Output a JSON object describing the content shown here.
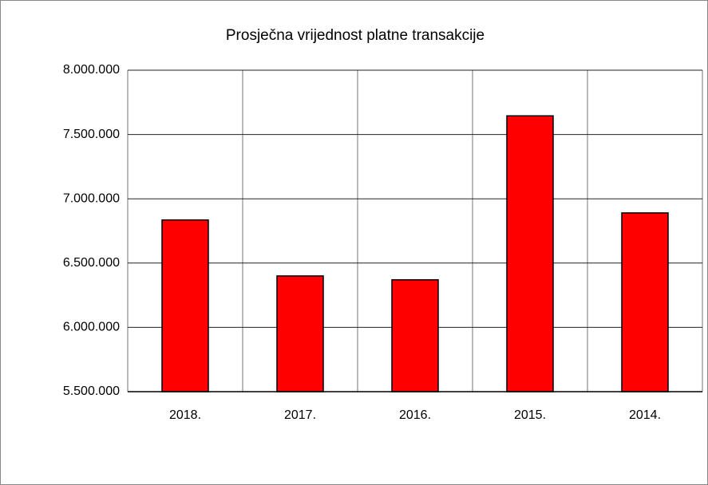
{
  "chart_data": {
    "type": "bar",
    "title": "Prosječna vrijednost platne transakcije",
    "categories": [
      "2018.",
      "2017.",
      "2016.",
      "2015.",
      "2014."
    ],
    "values": [
      6835000,
      6400000,
      6370000,
      7645000,
      6890000
    ],
    "color": "#ff0000",
    "ylim": [
      5500000,
      8000000
    ],
    "yticks": [
      {
        "value": 5500000,
        "label": "5.500.000"
      },
      {
        "value": 6000000,
        "label": "6.000.000"
      },
      {
        "value": 6500000,
        "label": "6.500.000"
      },
      {
        "value": 7000000,
        "label": "7.000.000"
      },
      {
        "value": 7500000,
        "label": "7.500.000"
      },
      {
        "value": 8000000,
        "label": "8.000.000"
      }
    ],
    "grid": true
  }
}
